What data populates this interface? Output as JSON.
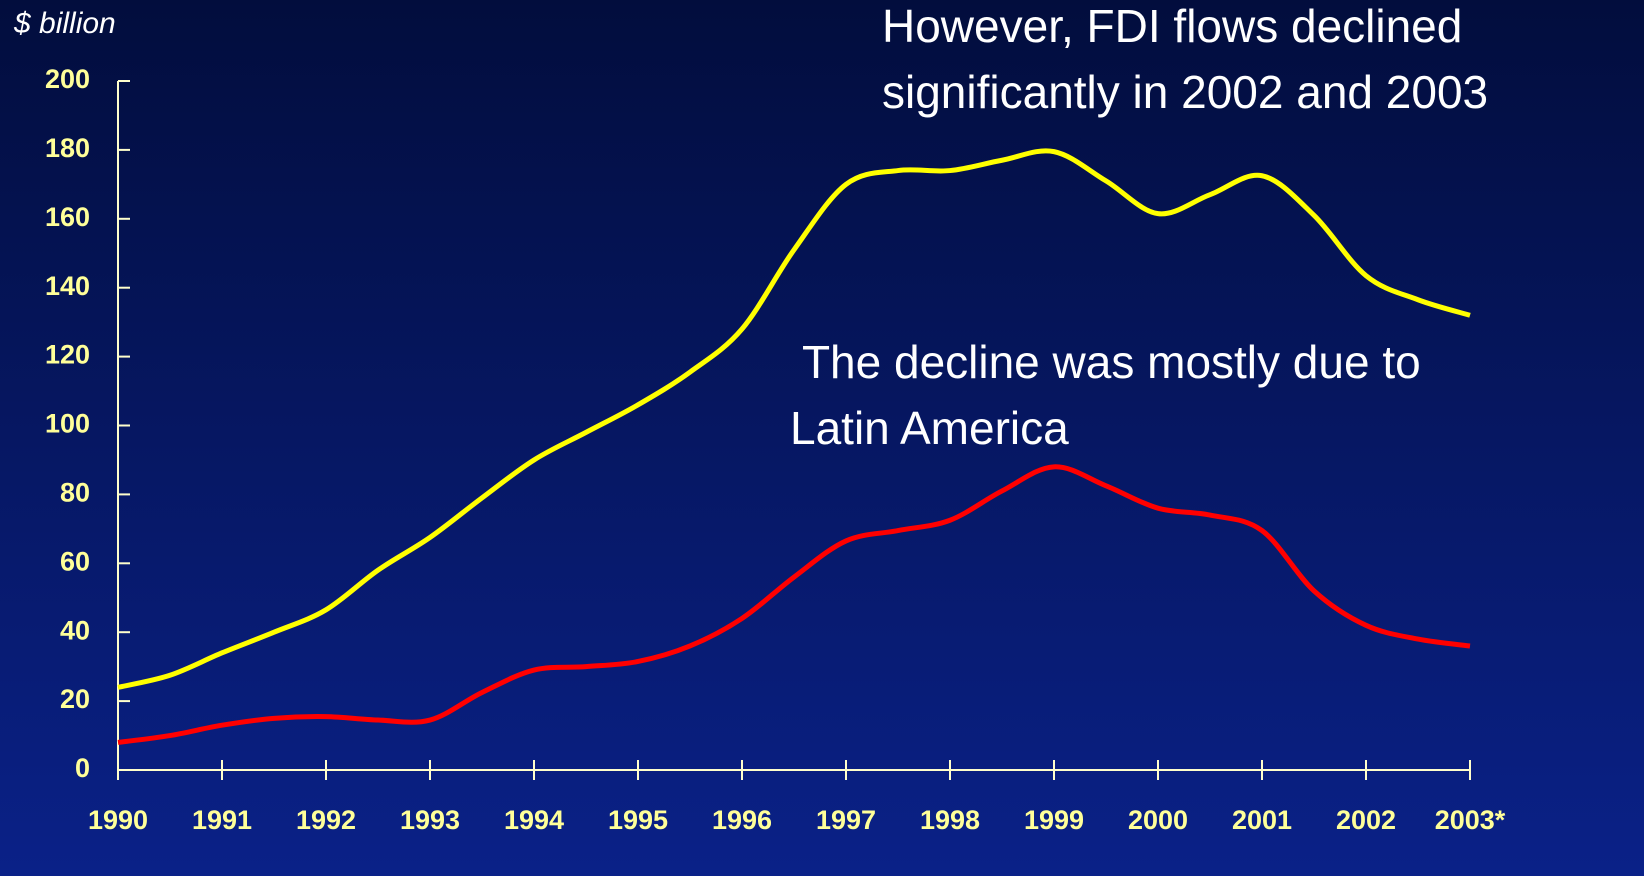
{
  "chart_data": {
    "type": "line",
    "y_label": "$ billion",
    "annotations": [
      [
        "However, FDI flows declined",
        "significantly in 2002 and 2003"
      ],
      [
        " The decline was mostly due to",
        "Latin America"
      ]
    ],
    "x": [
      1990,
      1990.5,
      1991,
      1991.5,
      1992,
      1992.5,
      1993,
      1993.5,
      1994,
      1994.5,
      1995,
      1995.5,
      1996,
      1996.5,
      1997,
      1997.5,
      1998,
      1998.5,
      1999,
      1999.5,
      2000,
      2000.5,
      2001,
      2001.5,
      2002,
      2002.5,
      2003
    ],
    "series": [
      {
        "color": "#ffff00",
        "values": [
          24,
          27.5,
          34,
          40,
          46.5,
          58,
          67.5,
          79,
          90,
          98,
          106,
          115.5,
          128,
          151,
          170,
          174,
          174,
          177,
          179.5,
          171,
          161.5,
          167,
          172.5,
          161,
          143.5,
          136.5,
          132
        ]
      },
      {
        "color": "#ff0000",
        "values": [
          8,
          10,
          13,
          15,
          15.5,
          14.5,
          14.5,
          22.5,
          29,
          30,
          31.5,
          36,
          44,
          56,
          66.5,
          69.5,
          72.5,
          81,
          88,
          82.5,
          76,
          74,
          69.5,
          52,
          42,
          38,
          36
        ]
      }
    ],
    "xlim": [
      1990,
      2003
    ],
    "xticks": [
      1990,
      1991,
      1992,
      1993,
      1994,
      1995,
      1996,
      1997,
      1998,
      1999,
      2000,
      2001,
      2002,
      {
        "value": 2003,
        "label": "2003*"
      }
    ],
    "ylim": [
      0,
      200
    ],
    "yticks": [
      0,
      20,
      40,
      60,
      80,
      100,
      120,
      140,
      160,
      180,
      200
    ],
    "grid": false
  }
}
